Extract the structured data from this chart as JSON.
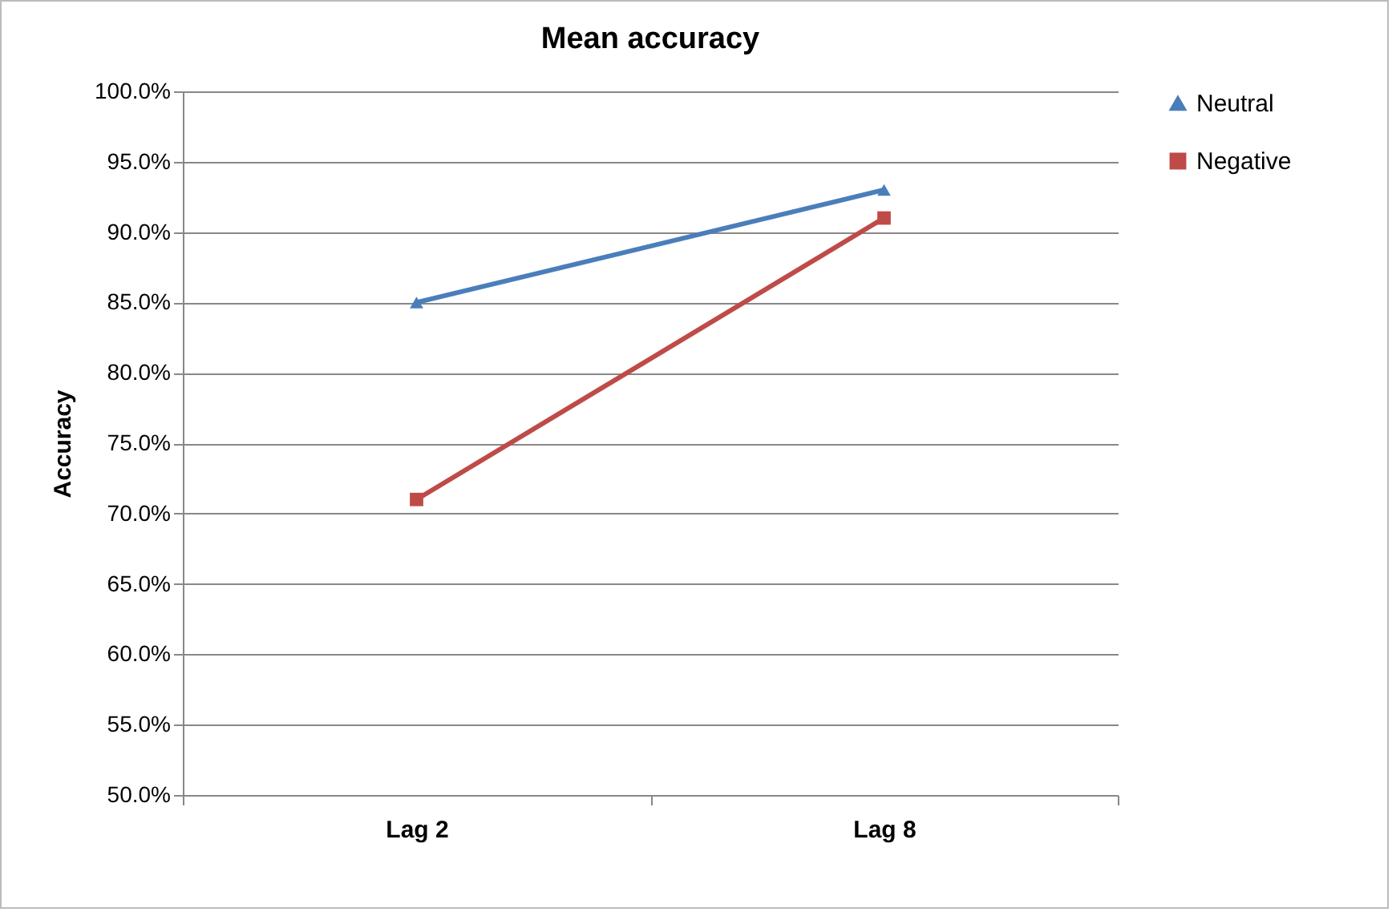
{
  "chart_data": {
    "type": "line",
    "title": "Mean accuracy",
    "ylabel": "Accuracy",
    "categories": [
      "Lag 2",
      "Lag 8"
    ],
    "series": [
      {
        "name": "Neutral",
        "color": "#4a7ebb",
        "values": [
          85,
          93
        ],
        "marker": "triangle"
      },
      {
        "name": "Negative",
        "color": "#be4b48",
        "values": [
          71,
          91
        ],
        "marker": "square"
      }
    ],
    "ylim": [
      50,
      100
    ],
    "yticks": [
      {
        "value": 50,
        "label": "50.0%"
      },
      {
        "value": 55,
        "label": "55.0%"
      },
      {
        "value": 60,
        "label": "60.0%"
      },
      {
        "value": 65,
        "label": "65.0%"
      },
      {
        "value": 70,
        "label": "70.0%"
      },
      {
        "value": 75,
        "label": "75.0%"
      },
      {
        "value": 80,
        "label": "80.0%"
      },
      {
        "value": 85,
        "label": "85.0%"
      },
      {
        "value": 90,
        "label": "90.0%"
      },
      {
        "value": 95,
        "label": "95.0%"
      },
      {
        "value": 100,
        "label": "100.0%"
      }
    ],
    "grid": "y",
    "legend": "right",
    "line_style": "solid"
  }
}
